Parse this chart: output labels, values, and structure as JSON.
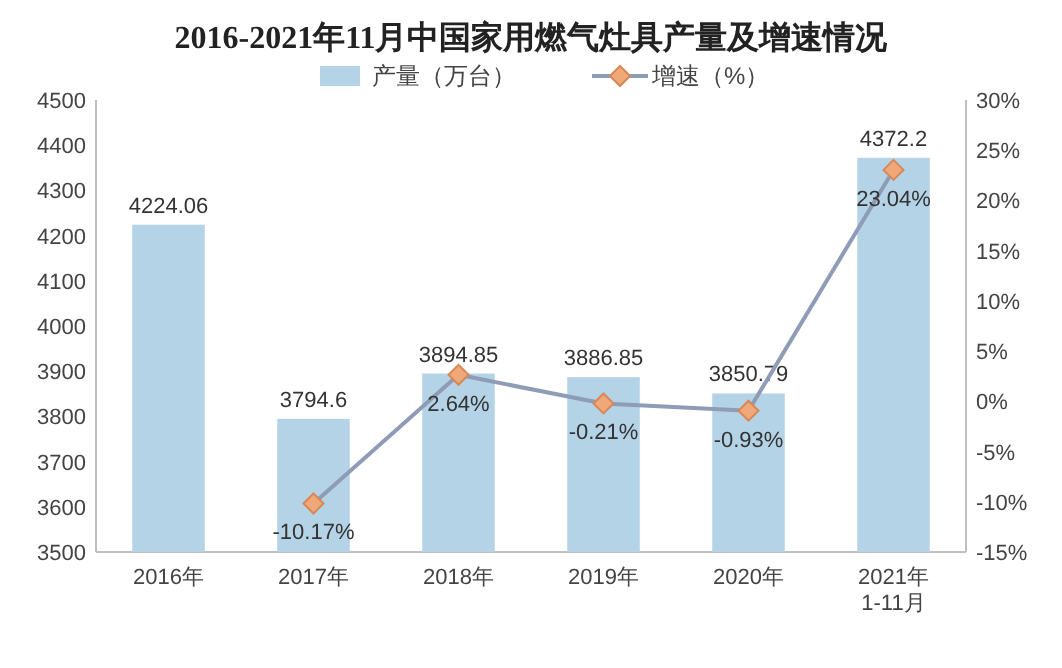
{
  "chart_data": {
    "type": "bar",
    "title": "2016-2021年11月中国家用燃气灶具产量及增速情况",
    "categories": [
      "2016年",
      "2017年",
      "2018年",
      "2019年",
      "2020年",
      "2021年\n1-11月"
    ],
    "series": [
      {
        "name": "产量（万台）",
        "color": "#b4d3e6",
        "values": [
          4224.06,
          3794.6,
          3894.85,
          3886.85,
          3850.79,
          4372.2
        ],
        "value_labels": [
          "4224.06",
          "3794.6",
          "3894.85",
          "3886.85",
          "3850.79",
          "4372.2"
        ]
      },
      {
        "name": "增速（%）",
        "type": "line",
        "axis": "y2",
        "color": "#8e9cb6",
        "marker": "diamond",
        "values": [
          null,
          -10.17,
          2.64,
          -0.21,
          -0.93,
          23.04
        ],
        "value_labels": [
          null,
          "-10.17%",
          "2.64%",
          "-0.21%",
          "-0.93%",
          "23.04%"
        ]
      }
    ],
    "ylim": [
      3500,
      4500
    ],
    "yticks": [
      3500,
      3600,
      3700,
      3800,
      3900,
      4000,
      4100,
      4200,
      4300,
      4400,
      4500
    ],
    "y2lim": [
      -15,
      30
    ],
    "y2ticks": [
      {
        "value": -15,
        "label": "-15%"
      },
      {
        "value": -10,
        "label": "-10%"
      },
      {
        "value": -5,
        "label": "-5%"
      },
      {
        "value": 0,
        "label": "0%"
      },
      {
        "value": 5,
        "label": "5%"
      },
      {
        "value": 10,
        "label": "10%"
      },
      {
        "value": 15,
        "label": "15%"
      },
      {
        "value": 20,
        "label": "20%"
      },
      {
        "value": 25,
        "label": "25%"
      },
      {
        "value": 30,
        "label": "30%"
      }
    ],
    "legend": "top",
    "grid": false
  }
}
